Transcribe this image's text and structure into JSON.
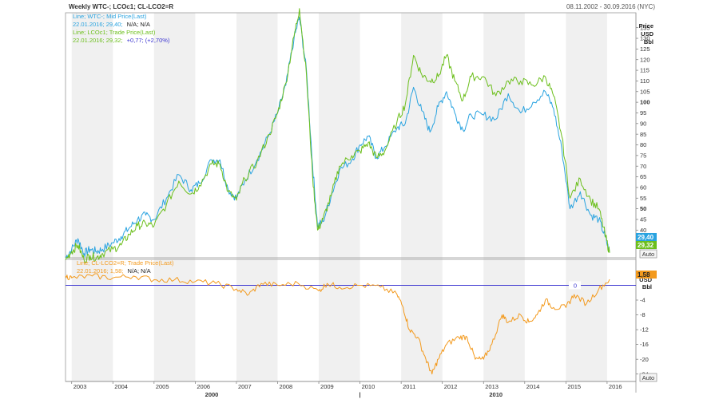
{
  "header": {
    "title": "Weekly WTC-; LCOc1; CL-LCO2=R",
    "date_range": "08.11.2002 - 30.09.2016 (NYC)"
  },
  "colors": {
    "wti": "#29a3e0",
    "brent": "#6cbf1c",
    "spread": "#f39a1e",
    "zero_line": "#3a34d0",
    "bands": "#f0f0f0",
    "frame": "#9a9a9a"
  },
  "chart_data": [
    {
      "type": "line",
      "panel": "price",
      "legend": {
        "wti_title": "Line; WTC-; Mid Price(Last)",
        "wti_value": "22.01.2016; 29,40;",
        "wti_extra": "N/A; N/A",
        "brent_title": "Line; LCOc1; Trade Price(Last)",
        "brent_value": "22.01.2016; 29,32;",
        "brent_extra": "+0,77; (+2,70%)"
      },
      "axis_title": [
        "Price",
        "USD",
        "Bbl"
      ],
      "scale_button": "Auto",
      "ylim": [
        27,
        142
      ],
      "y_ticks": [
        35,
        40,
        45,
        50,
        55,
        60,
        65,
        70,
        75,
        80,
        85,
        90,
        95,
        100,
        105,
        110,
        115,
        120,
        125,
        130,
        135
      ],
      "y_bold_ticks": [
        50,
        100
      ],
      "series": [
        {
          "name": "WTC-",
          "last_label": "29,40",
          "x": [
            2002.85,
            2003.0,
            2003.15,
            2003.3,
            2003.45,
            2003.6,
            2003.75,
            2004.0,
            2004.2,
            2004.4,
            2004.6,
            2004.8,
            2005.0,
            2005.3,
            2005.6,
            2005.9,
            2006.1,
            2006.4,
            2006.6,
            2006.8,
            2007.0,
            2007.2,
            2007.5,
            2007.8,
            2008.0,
            2008.2,
            2008.4,
            2008.53,
            2008.7,
            2008.85,
            2008.97,
            2009.1,
            2009.3,
            2009.5,
            2009.8,
            2010.0,
            2010.2,
            2010.4,
            2010.6,
            2010.9,
            2011.1,
            2011.3,
            2011.5,
            2011.7,
            2011.9,
            2012.1,
            2012.3,
            2012.5,
            2012.7,
            2013.0,
            2013.3,
            2013.6,
            2013.9,
            2014.2,
            2014.5,
            2014.7,
            2014.9,
            2015.1,
            2015.35,
            2015.6,
            2015.8,
            2015.95,
            2016.06
          ],
          "values": [
            27,
            31,
            36,
            29,
            31,
            30,
            31,
            34,
            37,
            41,
            45,
            47,
            45,
            55,
            66,
            59,
            62,
            73,
            73,
            59,
            55,
            63,
            73,
            85,
            95,
            108,
            130,
            140,
            115,
            70,
            42,
            44,
            56,
            68,
            73,
            80,
            84,
            74,
            79,
            88,
            90,
            107,
            96,
            86,
            98,
            105,
            95,
            87,
            94,
            94,
            92,
            104,
            95,
            100,
            105,
            97,
            78,
            50,
            58,
            47,
            45,
            37,
            29.4
          ]
        },
        {
          "name": "LCOc1",
          "last_label": "29,32",
          "x": [
            2002.85,
            2003.0,
            2003.15,
            2003.3,
            2003.45,
            2003.6,
            2003.75,
            2004.0,
            2004.2,
            2004.4,
            2004.6,
            2004.8,
            2005.0,
            2005.3,
            2005.6,
            2005.9,
            2006.1,
            2006.4,
            2006.6,
            2006.8,
            2007.0,
            2007.2,
            2007.5,
            2007.8,
            2008.0,
            2008.2,
            2008.4,
            2008.53,
            2008.7,
            2008.85,
            2008.97,
            2009.1,
            2009.3,
            2009.5,
            2009.8,
            2010.0,
            2010.2,
            2010.4,
            2010.6,
            2010.9,
            2011.1,
            2011.3,
            2011.5,
            2011.7,
            2011.9,
            2012.1,
            2012.3,
            2012.5,
            2012.7,
            2013.0,
            2013.3,
            2013.6,
            2013.9,
            2014.2,
            2014.5,
            2014.7,
            2014.9,
            2015.1,
            2015.35,
            2015.6,
            2015.8,
            2015.95,
            2016.06
          ],
          "values": [
            26,
            30,
            33,
            26,
            28,
            27,
            29,
            31,
            33,
            38,
            42,
            43,
            42,
            52,
            63,
            57,
            61,
            71,
            71,
            58,
            54,
            64,
            72,
            85,
            95,
            109,
            131,
            144,
            113,
            65,
            40,
            45,
            56,
            70,
            75,
            77,
            81,
            74,
            77,
            91,
            99,
            122,
            113,
            110,
            112,
            122,
            110,
            101,
            112,
            112,
            103,
            110,
            110,
            108,
            112,
            103,
            84,
            55,
            64,
            54,
            50,
            38,
            29.32
          ]
        }
      ]
    },
    {
      "type": "line",
      "panel": "spread",
      "legend": {
        "spread_title": "Line; CL-LCO2=R; Trade Price(Last)",
        "spread_value": "22.01.2016; 1,58;",
        "spread_extra": "N/A; N/A"
      },
      "axis_title": [
        "USD",
        "Bbl"
      ],
      "scale_button": "Auto",
      "ylim": [
        -26,
        7
      ],
      "y_ticks": [
        -24,
        -20,
        -16,
        -12,
        -8,
        -4
      ],
      "zero_label": "0",
      "series": [
        {
          "name": "CL-LCO2=R",
          "last_label": "1,58",
          "x": [
            2002.85,
            2003.0,
            2003.5,
            2004.0,
            2004.5,
            2005.0,
            2005.5,
            2006.0,
            2006.5,
            2007.0,
            2007.3,
            2007.6,
            2008.0,
            2008.5,
            2009.0,
            2009.2,
            2009.5,
            2010.0,
            2010.5,
            2010.9,
            2011.05,
            2011.2,
            2011.4,
            2011.6,
            2011.75,
            2011.9,
            2012.1,
            2012.4,
            2012.6,
            2012.8,
            2013.0,
            2013.2,
            2013.45,
            2013.6,
            2013.9,
            2014.1,
            2014.3,
            2014.5,
            2014.7,
            2015.0,
            2015.2,
            2015.5,
            2015.8,
            2016.06
          ],
          "values": [
            2.5,
            2.0,
            2.5,
            2.0,
            2.5,
            1.5,
            1.5,
            1.0,
            0.5,
            -1.0,
            -2.5,
            0.5,
            0.0,
            0.5,
            -1.5,
            0.5,
            -0.5,
            0.0,
            -0.5,
            -2.5,
            -6.0,
            -12.0,
            -14.0,
            -20.0,
            -24.0,
            -20.0,
            -16.0,
            -14.0,
            -14.0,
            -20.0,
            -20.0,
            -16.0,
            -8.0,
            -10.0,
            -8.0,
            -10.0,
            -8.0,
            -4.0,
            -6.0,
            -6.0,
            -2.5,
            -5.0,
            -1.0,
            1.58
          ]
        }
      ]
    }
  ],
  "x_axis": {
    "xlim": [
      2002.85,
      2016.7
    ],
    "year_labels": [
      "2003",
      "2004",
      "2005",
      "2006",
      "2007",
      "2008",
      "2009",
      "2010",
      "2011",
      "2012",
      "2013",
      "2014",
      "2015",
      "2016"
    ],
    "decade_labels": [
      {
        "label": "2000",
        "x": 2006.4
      },
      {
        "label": "|",
        "x": 2010.0
      },
      {
        "label": "2010",
        "x": 2013.3
      }
    ]
  }
}
